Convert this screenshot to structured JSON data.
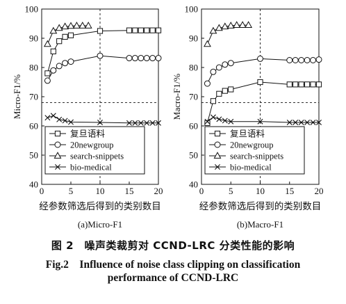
{
  "figure": {
    "caption_zh": "图 2　噪声类裁剪对 CCND-LRC 分类性能的影响",
    "caption_en_line1": "Fig.2　Influence of noise class clipping on classification",
    "caption_en_line2": "performance of CCND-LRC"
  },
  "chart_data": [
    {
      "type": "line",
      "subtitle": "(a)Micro-F1",
      "xlabel": "经参数筛选后得到的类别数目",
      "ylabel": "Micro-F1/%",
      "xlim": [
        0,
        20
      ],
      "ylim": [
        40,
        100
      ],
      "xticks": [
        0,
        5,
        10,
        15,
        20
      ],
      "yticks": [
        40,
        50,
        60,
        70,
        80,
        90,
        100
      ],
      "vline_x": 10,
      "hline_y": 68,
      "legend_position": "lower-left",
      "series": [
        {
          "name": "复旦语料",
          "marker": "square",
          "x": [
            1,
            2,
            3,
            4,
            5,
            10,
            15,
            16,
            17,
            18,
            19,
            20
          ],
          "y": [
            78.0,
            85.5,
            89.0,
            90.5,
            91.0,
            92.5,
            92.7,
            92.7,
            92.7,
            92.7,
            92.7,
            92.7
          ]
        },
        {
          "name": "20newgroup",
          "marker": "circle",
          "x": [
            1,
            2,
            3,
            4,
            5,
            10,
            15,
            16,
            17,
            18,
            19,
            20
          ],
          "y": [
            75.5,
            79.0,
            80.5,
            81.5,
            82.0,
            84.0,
            83.2,
            83.2,
            83.2,
            83.2,
            83.2,
            83.2
          ]
        },
        {
          "name": "search-snippets",
          "marker": "triangle",
          "x": [
            1,
            2,
            3,
            4,
            5,
            6,
            7,
            8
          ],
          "y": [
            88.0,
            92.5,
            93.5,
            94.0,
            94.2,
            94.3,
            94.3,
            94.3
          ]
        },
        {
          "name": "bio-medical",
          "marker": "x",
          "x": [
            1,
            2,
            3,
            4,
            5,
            10,
            15,
            16,
            17,
            18,
            19,
            20
          ],
          "y": [
            62.8,
            63.5,
            62.2,
            61.8,
            61.3,
            61.2,
            61.0,
            61.0,
            61.0,
            61.0,
            61.0,
            61.0
          ]
        }
      ]
    },
    {
      "type": "line",
      "subtitle": "(b)Macro-F1",
      "xlabel": "经参数筛选后得到的类别数目",
      "ylabel": "Macro-F1/%",
      "xlim": [
        0,
        20
      ],
      "ylim": [
        40,
        100
      ],
      "xticks": [
        0,
        5,
        10,
        15,
        20
      ],
      "yticks": [
        40,
        50,
        60,
        70,
        80,
        90,
        100
      ],
      "vline_x": 10,
      "hline_y": 68,
      "legend_position": "lower-left",
      "series": [
        {
          "name": "复旦语料",
          "marker": "square",
          "x": [
            1,
            2,
            3,
            4,
            5,
            10,
            15,
            16,
            17,
            18,
            19,
            20
          ],
          "y": [
            61.0,
            68.5,
            71.0,
            72.0,
            72.5,
            75.0,
            74.2,
            74.2,
            74.2,
            74.2,
            74.2,
            74.2
          ]
        },
        {
          "name": "20newgroup",
          "marker": "circle",
          "x": [
            1,
            2,
            3,
            4,
            5,
            10,
            15,
            16,
            17,
            18,
            19,
            20
          ],
          "y": [
            74.5,
            78.5,
            80.0,
            81.0,
            81.5,
            83.0,
            82.5,
            82.5,
            82.5,
            82.5,
            82.5,
            82.7
          ]
        },
        {
          "name": "search-snippets",
          "marker": "triangle",
          "x": [
            1,
            2,
            3,
            4,
            5,
            6,
            7,
            8
          ],
          "y": [
            88.0,
            92.5,
            93.5,
            94.0,
            94.3,
            94.5,
            94.5,
            94.5
          ]
        },
        {
          "name": "bio-medical",
          "marker": "x",
          "x": [
            1,
            2,
            3,
            4,
            5,
            10,
            15,
            16,
            17,
            18,
            19,
            20
          ],
          "y": [
            61.5,
            63.0,
            62.3,
            61.8,
            61.5,
            61.5,
            61.2,
            61.2,
            61.2,
            61.2,
            61.2,
            61.2
          ]
        }
      ]
    }
  ]
}
